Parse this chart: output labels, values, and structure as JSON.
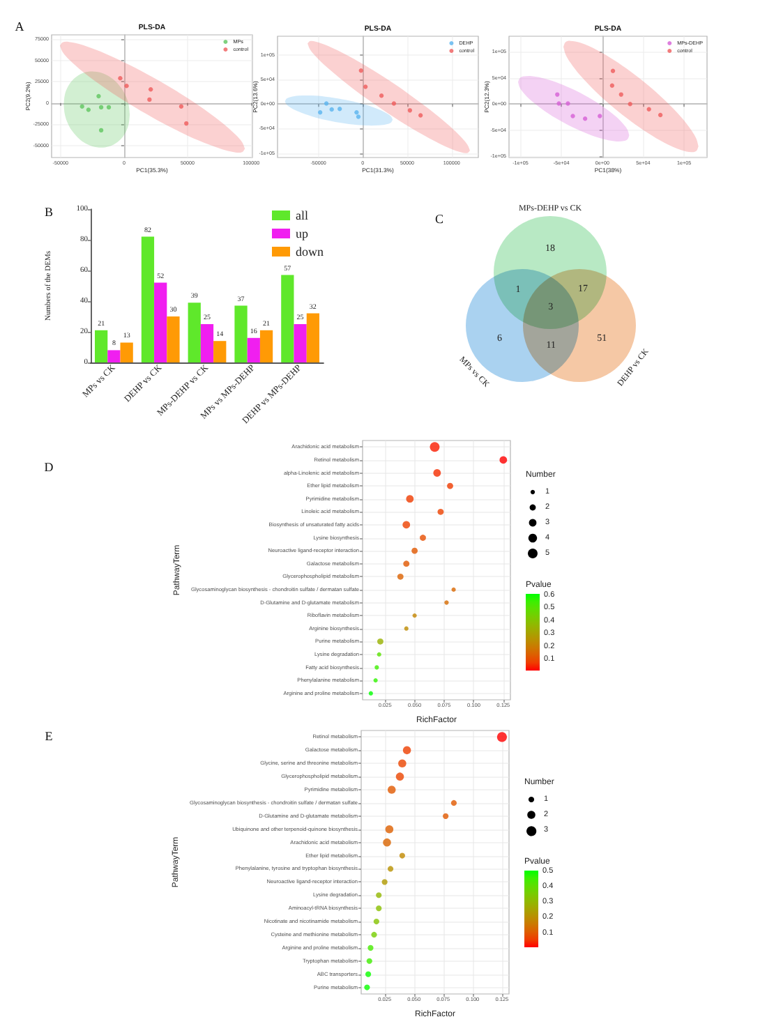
{
  "chart_data": [
    {
      "type": "scatter",
      "title": "PLS-DA",
      "xlabel": "PC1(35.3%)",
      "ylabel": "PC2(9.2%)",
      "annotations": [
        "A"
      ],
      "series": [
        {
          "name": "MPs",
          "color": "#5fc65f",
          "x": [
            -20000,
            -33000,
            -28000,
            -18000,
            -12000,
            -18000
          ],
          "values": [
            8000,
            -4000,
            -8000,
            -5000,
            -5000,
            -32000
          ]
        },
        {
          "name": "control",
          "color": "#ef5b5b",
          "x": [
            -3000,
            2000,
            21000,
            20000,
            45000,
            49000
          ],
          "values": [
            29000,
            20000,
            16000,
            4000,
            -4000,
            -24000
          ]
        },
        {
          "color": "#5fc65f",
          "x": [
            -47500,
            -46700,
            -44900,
            -41000,
            -34500,
            -28000,
            -21500,
            -15000,
            -8500,
            -2000,
            1900,
            3700,
            4500
          ],
          "values": [
            null,
            null,
            null,
            null,
            null,
            null,
            null,
            null,
            null,
            null,
            null,
            null,
            null
          ],
          "lower": [
            -1700,
            -12700,
            -21600,
            -32500,
            -43100,
            -49100,
            -52000,
            -52100,
            -49100,
            -41500,
            -32400,
            -24200,
            -13600
          ],
          "upper": [
            -1700,
            8900,
            17000,
            26100,
            33700,
            36800,
            36700,
            33800,
            27800,
            17200,
            6300,
            -2700,
            -13600
          ]
        },
        {
          "color": "#ef5b5b",
          "x": [
            -50400,
            -48300,
            -43200,
            -32200,
            -14100,
            4100,
            22300,
            40500,
            58700,
            76900,
            87800,
            92900,
            95100
          ],
          "values": [
            null,
            null,
            null,
            null,
            null,
            null,
            null,
            null,
            null,
            null,
            null,
            null,
            null
          ],
          "lower": [
            67400,
            59800,
            51000,
            36500,
            16600,
            -1000,
            -16900,
            -31300,
            -44000,
            -54200,
            -58000,
            -57600,
            -53700
          ],
          "upper": [
            67400,
            71300,
            71600,
            67900,
            57600,
            44900,
            30500,
            14700,
            -2900,
            -22900,
            -37300,
            -46100,
            -53700
          ]
        }
      ],
      "xlim": [
        -57000,
        101000
      ],
      "xticks": [
        -50000,
        0,
        50000,
        100000
      ],
      "ylim": [
        -64000,
        80000
      ],
      "yticks": [
        -50000,
        -25000,
        0,
        25000,
        50000,
        75000
      ],
      "grid": true,
      "legend": "top right",
      "marker": "circle"
    },
    {
      "type": "scatter",
      "title": "PLS-DA",
      "xlabel": "PC1(31.3%)",
      "ylabel": "PC2(13.6%)",
      "series": [
        {
          "name": "DEHP",
          "color": "#5ab4ef",
          "x": [
            -41000,
            -48000,
            -35000,
            -26000,
            -7000,
            -5000
          ],
          "values": [
            1000,
            -17000,
            -11000,
            -10000,
            -17000,
            -26000
          ]
        },
        {
          "name": "control",
          "color": "#ef5b5b",
          "x": [
            -2000,
            3000,
            21000,
            35000,
            53000,
            65000
          ],
          "values": [
            68000,
            35000,
            17000,
            1000,
            -13000,
            -23000
          ]
        },
        {
          "color": "#5ab4ef",
          "x": [
            -87600,
            -85800,
            -81500,
            -72400,
            -57300,
            -42200,
            -27000,
            -11900,
            3300,
            18400,
            27500,
            31800,
            33600
          ],
          "values": [
            null,
            null,
            null,
            null,
            null,
            null,
            null,
            null,
            null,
            null,
            null,
            null,
            null
          ],
          "lower": [
            5400,
            -1100,
            -7100,
            -15400,
            -25100,
            -32300,
            -37700,
            -41600,
            -43800,
            -43500,
            -40900,
            -37500,
            -32100
          ],
          "upper": [
            5400,
            10800,
            14200,
            16900,
            17200,
            15000,
            11100,
            5600,
            -1600,
            -11300,
            -19600,
            -25600,
            -32100
          ]
        },
        {
          "color": "#ef5b5b",
          "x": [
            -62200,
            -59500,
            -53100,
            -39400,
            -16500,
            6300,
            29200,
            52000,
            74900,
            97700,
            111400,
            117800,
            120600
          ],
          "values": [
            null,
            null,
            null,
            null,
            null,
            null,
            null,
            null,
            null,
            null,
            null,
            null,
            null
          ],
          "lower": [
            123100,
            111500,
            97300,
            73300,
            39000,
            8300,
            -20000,
            -46200,
            -69900,
            -90200,
            -98800,
            -99800,
            -94800
          ],
          "upper": [
            123100,
            128200,
            127100,
            118500,
            98300,
            74500,
            48400,
            20000,
            -10700,
            -44900,
            -69000,
            -83200,
            -94800
          ]
        }
      ],
      "xlim": [
        -96000,
        130000
      ],
      "xticks": [
        -50000,
        0,
        50000,
        100000
      ],
      "ylim": [
        -109000,
        138000
      ],
      "yticks": [
        {
          "value": -100000,
          "label": "-1e+05"
        },
        {
          "value": -50000,
          "label": "-5e+04"
        },
        {
          "value": 0,
          "label": "0e+00"
        },
        {
          "value": 50000,
          "label": "5e+04"
        },
        {
          "value": 100000,
          "label": "1e+05"
        }
      ],
      "grid": true,
      "legend": "top right",
      "marker": "circle"
    },
    {
      "type": "scatter",
      "title": "PLS-DA",
      "xlabel": "PC1(38%)",
      "ylabel": "PC2(12.3%)",
      "series": [
        {
          "name": "MPs-DEHP",
          "color": "#d65fd6",
          "x": [
            -55000,
            -53000,
            -42000,
            -36000,
            -21000,
            -3000
          ],
          "values": [
            18000,
            1000,
            1000,
            -23000,
            -28000,
            -23000
          ]
        },
        {
          "name": "control",
          "color": "#ef5b5b",
          "x": [
            13000,
            12000,
            23000,
            34000,
            57000,
            71000
          ],
          "values": [
            63000,
            35000,
            18000,
            0,
            -10000,
            -21000
          ]
        },
        {
          "color": "#d65fd6",
          "x": [
            -102900,
            -100900,
            -96100,
            -86000,
            -69000,
            -52000,
            -35000,
            -18000,
            -1000,
            16000,
            26100,
            30900,
            32900
          ],
          "values": [
            null,
            null,
            null,
            null,
            null,
            null,
            null,
            null,
            null,
            null,
            null,
            null,
            null
          ],
          "lower": [
            41800,
            31400,
            20900,
            5100,
            -15000,
            -31400,
            -45300,
            -56800,
            -65800,
            -71100,
            -70500,
            -67100,
            -59800
          ],
          "upper": [
            41800,
            49100,
            52500,
            53100,
            47800,
            38800,
            27300,
            13400,
            -3000,
            -23100,
            -38900,
            -49400,
            -59800
          ]
        },
        {
          "color": "#ef5b5b",
          "x": [
            -47500,
            -45000,
            -39200,
            -26900,
            -6200,
            14400,
            35000,
            55600,
            76200,
            96900,
            109200,
            115000,
            117500
          ],
          "values": [
            null,
            null,
            null,
            null,
            null,
            null,
            null,
            null,
            null,
            null,
            null,
            null,
            null
          ],
          "lower": [
            109100,
            94800,
            79100,
            54200,
            20800,
            -7700,
            -33000,
            -55200,
            -74100,
            -88200,
            -91800,
            -89400,
            -80800
          ],
          "upper": [
            109100,
            117700,
            120200,
            116600,
            102500,
            83500,
            61300,
            36100,
            7500,
            -25900,
            -50800,
            -66500,
            -80800
          ]
        }
      ],
      "xlim": [
        -114000,
        128000
      ],
      "xticks": [
        {
          "value": -100000,
          "label": "-1e+05"
        },
        {
          "value": -50000,
          "label": "-5e+04"
        },
        {
          "value": 0,
          "label": "0e+00"
        },
        {
          "value": 50000,
          "label": "5e+04"
        },
        {
          "value": 100000,
          "label": "1e+05"
        }
      ],
      "ylim": [
        -102000,
        129000
      ],
      "yticks": [
        {
          "value": -100000,
          "label": "-1e+05"
        },
        {
          "value": -50000,
          "label": "-5e+04"
        },
        {
          "value": 0,
          "label": "0e+00"
        },
        {
          "value": 50000,
          "label": "5e+04"
        },
        {
          "value": 100000,
          "label": "1e+05"
        }
      ],
      "grid": true,
      "legend": "top right",
      "marker": "circle"
    },
    {
      "type": "bar",
      "ylabel": "Numbers of the DEMs",
      "annotations": [
        "B"
      ],
      "categories": [
        "MPs vs CK",
        "DEHP vs CK",
        "MPs-DEHP vs CK",
        "MPs vs MPs-DEHP",
        "DEHP vs MPs-DEHP"
      ],
      "series": [
        {
          "name": "all",
          "color": "#5fe82b",
          "values": [
            21,
            82,
            39,
            37,
            57
          ]
        },
        {
          "name": "up",
          "color": "#f01ff0",
          "values": [
            8,
            52,
            25,
            16,
            25
          ]
        },
        {
          "name": "down",
          "color": "#ff9a05",
          "values": [
            13,
            30,
            14,
            21,
            32
          ]
        }
      ],
      "ylim": [
        0,
        100
      ],
      "yticks": [
        0,
        20,
        40,
        60,
        80,
        100
      ],
      "data_labels": true,
      "legend": "top right"
    },
    {
      "type": "other",
      "annotations": [
        "C",
        "MPs-DEHP vs CK",
        "MPs vs CK",
        "DEHP vs CK",
        "18",
        "1",
        "17",
        "3",
        "6",
        "11",
        "51"
      ]
    },
    {
      "type": "bubble",
      "orientation": "horizontal",
      "xlabel": "RichFactor",
      "ylabel": "PathwayTerm",
      "legend_title": "Number",
      "clabel": "Pvalue",
      "annotations": [
        "D"
      ],
      "categories": [
        "Arachidonic acid metabolism",
        "Retinol metabolism",
        "alpha-Linolenic acid metabolism",
        "Ether lipid metabolism",
        "Pyrimidine metabolism",
        "Linoleic acid metabolism",
        "Biosynthesis of unsaturated fatty acids",
        "Lysine biosynthesis",
        "Neuroactive ligand-receptor interaction",
        "Galactose metabolism",
        "Glycerophospholipid metabolism",
        "Glycosaminoglycan biosynthesis - chondroitin sulfate / dermatan sulfate",
        "D-Glutamine and D-glutamate metabolism",
        "Riboflavin metabolism",
        "Arginine biosynthesis",
        "Purine metabolism",
        "Lysine degradation",
        "Fatty acid biosynthesis",
        "Phenylalanine metabolism",
        "Arginine and proline metabolism"
      ],
      "values": [
        0.067,
        0.125,
        0.069,
        0.08,
        0.046,
        0.072,
        0.043,
        0.057,
        0.05,
        0.043,
        0.038,
        0.083,
        0.077,
        0.05,
        0.043,
        0.021,
        0.02,
        0.018,
        0.017,
        0.013
      ],
      "sizes": [
        5,
        3,
        3,
        2,
        3,
        2,
        3,
        2,
        2,
        2,
        2,
        1,
        1,
        1,
        1,
        2,
        1,
        1,
        1,
        1
      ],
      "size_legend": [
        1,
        2,
        3,
        4,
        5
      ],
      "cvalues": [
        0.03,
        0.013,
        0.05,
        0.07,
        0.07,
        0.08,
        0.08,
        0.1,
        0.12,
        0.12,
        0.14,
        0.15,
        0.16,
        0.22,
        0.24,
        0.35,
        0.5,
        0.55,
        0.57,
        0.61
      ],
      "clim": [
        0.013,
        0.61
      ],
      "cticks": [
        0.1,
        0.2,
        0.3,
        0.4,
        0.5,
        0.6
      ],
      "xlim": [
        0.006,
        0.131
      ],
      "xticks": [
        0.025,
        {
          "value": 0.05,
          "label": "0.050"
        },
        0.075,
        {
          "value": 0.1,
          "label": "0.100"
        },
        0.125
      ],
      "grid": true
    },
    {
      "type": "bubble",
      "orientation": "horizontal",
      "xlabel": "RichFactor",
      "ylabel": "PathwayTerm",
      "legend_title": "Number",
      "clabel": "Pvalue",
      "annotations": [
        "E"
      ],
      "categories": [
        "Retinol metabolism",
        "Galactose metabolism",
        "Glycine, serine and threonine metabolism",
        "Glycerophospholipid metabolism",
        "Pyrimidine metabolism",
        "Glycosaminoglycan biosynthesis - chondroitin sulfate / dermatan sulfate",
        "D-Glutamine and D-glutamate metabolism",
        "Ubiquinone and other terpenoid-quinone biosynthesis",
        "Arachidonic acid metabolism",
        "Ether lipid metabolism",
        "Phenylalanine, tyrosine and tryptophan biosynthesis",
        "Neuroactive ligand-receptor interaction",
        "Lysine degradation",
        "Aminoacyl-tRNA biosynthesis",
        "Nicotinate and nicotinamide metabolism",
        "Cysteine and methionine metabolism",
        "Arginine and proline metabolism",
        "Tryptophan metabolism",
        "ABC transporters",
        "Purine metabolism"
      ],
      "values": [
        0.125,
        0.044,
        0.04,
        0.038,
        0.031,
        0.084,
        0.077,
        0.029,
        0.027,
        0.04,
        0.03,
        0.025,
        0.02,
        0.02,
        0.018,
        0.016,
        0.013,
        0.012,
        0.011,
        0.01
      ],
      "sizes": [
        3,
        2,
        2,
        2,
        2,
        1,
        1,
        2,
        2,
        1,
        1,
        1,
        1,
        1,
        1,
        1,
        1,
        1,
        1,
        1
      ],
      "size_legend": [
        1,
        2,
        3
      ],
      "cvalues": [
        0.009,
        0.06,
        0.07,
        0.07,
        0.1,
        0.1,
        0.1,
        0.11,
        0.12,
        0.19,
        0.21,
        0.23,
        0.3,
        0.32,
        0.33,
        0.36,
        0.44,
        0.45,
        0.5,
        0.5
      ],
      "clim": [
        0.009,
        0.503
      ],
      "cticks": [
        0.1,
        0.2,
        0.3,
        0.4,
        0.5
      ],
      "xlim": [
        0.005,
        0.131
      ],
      "xticks": [
        0.025,
        {
          "value": 0.05,
          "label": "0.050"
        },
        0.075,
        {
          "value": 0.1,
          "label": "0.100"
        },
        0.125
      ],
      "grid": true
    }
  ]
}
